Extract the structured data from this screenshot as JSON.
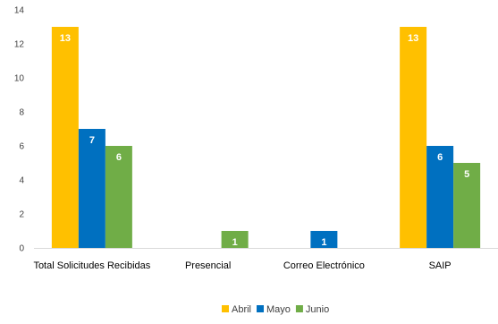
{
  "chart_data": {
    "type": "bar",
    "categories": [
      "Total Solicitudes Recibidas",
      "Presencial",
      "Correo Electrónico",
      "SAIP"
    ],
    "series": [
      {
        "name": "Abril",
        "color": "#FFC000",
        "values": [
          13,
          0,
          0,
          13
        ]
      },
      {
        "name": "Mayo",
        "color": "#0070C0",
        "values": [
          7,
          0,
          1,
          6
        ]
      },
      {
        "name": "Junio",
        "color": "#70AD47",
        "values": [
          6,
          1,
          0,
          5
        ]
      }
    ],
    "data_labels": [
      [
        "13",
        "",
        "",
        "13"
      ],
      [
        "7",
        "",
        "1",
        "6"
      ],
      [
        "6",
        "1",
        "",
        "5"
      ]
    ],
    "ylim": [
      0,
      14
    ],
    "yticks": [
      0,
      2,
      4,
      6,
      8,
      10,
      12,
      14
    ],
    "legend_position": "bottom",
    "grid": false
  }
}
